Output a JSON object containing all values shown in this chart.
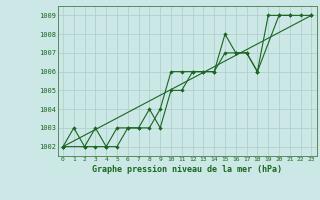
{
  "title": "Graphe pression niveau de la mer (hPa)",
  "bg_color": "#cce8e6",
  "grid_color": "#b0d0ce",
  "line_color": "#1a6620",
  "spine_color": "#5a8a5a",
  "x_ticks": [
    0,
    1,
    2,
    3,
    4,
    5,
    6,
    7,
    8,
    9,
    10,
    11,
    12,
    13,
    14,
    15,
    16,
    17,
    18,
    19,
    20,
    21,
    22,
    23
  ],
  "ylim": [
    1001.5,
    1009.5
  ],
  "yticks": [
    1002,
    1003,
    1004,
    1005,
    1006,
    1007,
    1008,
    1009
  ],
  "series": [
    {
      "x": [
        0,
        1,
        2,
        3,
        4,
        5,
        6,
        7,
        8,
        9,
        10,
        11,
        12,
        13,
        14,
        15,
        16,
        17,
        18,
        19,
        20,
        21
      ],
      "y": [
        1002,
        1003,
        1002,
        1002,
        1002,
        1003,
        1003,
        1003,
        1003,
        1004,
        1006,
        1006,
        1006,
        1006,
        1006,
        1008,
        1007,
        1007,
        1006,
        1009,
        1009,
        1009
      ]
    },
    {
      "x": [
        0,
        2,
        3,
        4,
        5,
        6,
        7,
        8,
        9,
        10,
        11,
        12,
        13,
        14,
        15,
        16,
        17,
        18,
        20,
        21,
        22,
        23
      ],
      "y": [
        1002,
        1002,
        1003,
        1002,
        1002,
        1003,
        1003,
        1004,
        1003,
        1005,
        1005,
        1006,
        1006,
        1006,
        1007,
        1007,
        1007,
        1006,
        1009,
        1009,
        1009,
        1009
      ]
    },
    {
      "x": [
        0,
        23
      ],
      "y": [
        1002,
        1009
      ]
    }
  ]
}
